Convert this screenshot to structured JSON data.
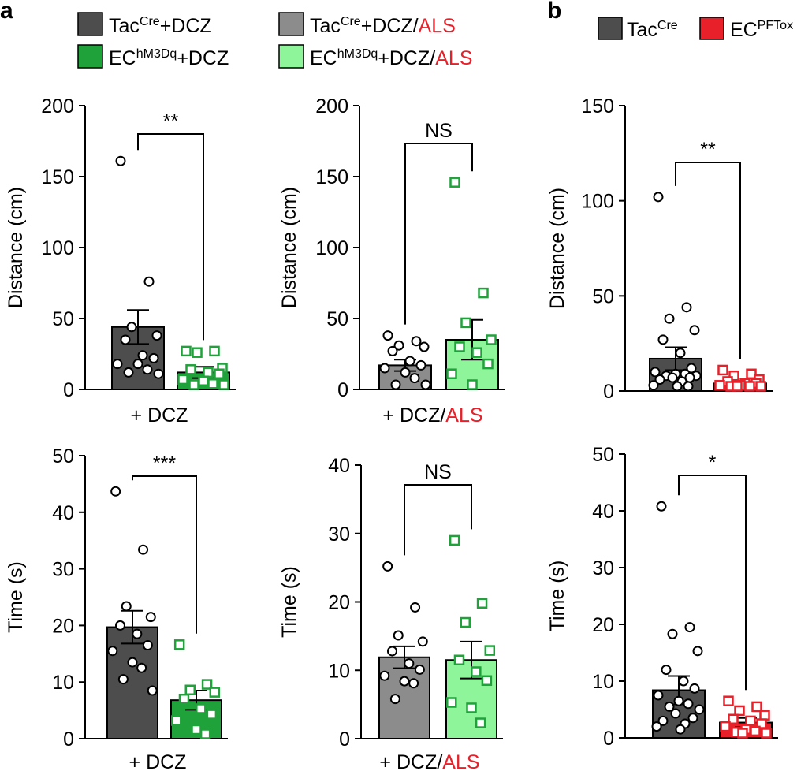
{
  "panel_labels": {
    "a": "a",
    "b": "b"
  },
  "colors": {
    "tac": "#4d4d4d",
    "ec": "#1fa23a",
    "tac_als": "#8c8c8c",
    "ec_als": "#8ef59a",
    "pftox": "#e8202a",
    "als_text": "#e8202a"
  },
  "legend_a": [
    {
      "base": "Tac",
      "sup": "Cre",
      "suffix": "+DCZ",
      "als": ""
    },
    {
      "base": "Tac",
      "sup": "Cre",
      "suffix": "+DCZ/",
      "als": "ALS"
    },
    {
      "base": "EC",
      "sup": "hM3Dq",
      "suffix": "+DCZ",
      "als": ""
    },
    {
      "base": "EC",
      "sup": "hM3Dq",
      "suffix": "+DCZ/",
      "als": "ALS"
    }
  ],
  "legend_b": [
    {
      "base": "Tac",
      "sup": "Cre"
    },
    {
      "base": "EC",
      "sup": "PFTox"
    }
  ],
  "chart_data": [
    {
      "id": "a_distance_dcz",
      "type": "bar",
      "panel": "a",
      "ylabel": "Distance (cm)",
      "xlabel": "+ DCZ",
      "xlabel_als": "",
      "ylim": [
        0,
        200
      ],
      "yticks": [
        0,
        50,
        100,
        150,
        200
      ],
      "significance": "**",
      "groups": [
        {
          "name": "TacCre+DCZ",
          "mean": 44,
          "sem": 12,
          "marker": "circle",
          "points": [
            161,
            76,
            44,
            38,
            35,
            24,
            22,
            18,
            18,
            14,
            12,
            11
          ]
        },
        {
          "name": "EChM3Dq+DCZ",
          "mean": 12,
          "sem": 4,
          "marker": "square",
          "points": [
            27,
            27,
            26,
            15,
            14,
            12,
            11,
            7,
            6,
            4,
            3,
            3
          ]
        }
      ]
    },
    {
      "id": "a_distance_dcz_als",
      "type": "bar",
      "panel": "a",
      "ylabel": "Distance (cm)",
      "xlabel": "+ DCZ/",
      "xlabel_als": "ALS",
      "ylim": [
        0,
        200
      ],
      "yticks": [
        0,
        50,
        100,
        150,
        200
      ],
      "significance": "NS",
      "groups": [
        {
          "name": "TacCre+DCZ/ALS",
          "mean": 17,
          "sem": 4,
          "marker": "circle",
          "points": [
            38,
            34,
            31,
            30,
            27,
            20,
            17,
            15,
            12,
            8,
            3,
            1
          ]
        },
        {
          "name": "EChM3Dq+DCZ/ALS",
          "mean": 35,
          "sem": 14,
          "marker": "square",
          "points": [
            146,
            68,
            47,
            35,
            30,
            26,
            18,
            11,
            2
          ]
        }
      ]
    },
    {
      "id": "b_distance",
      "type": "bar",
      "panel": "b",
      "ylabel": "Distance (cm)",
      "xlabel": "",
      "xlabel_als": "",
      "ylim": [
        0,
        150
      ],
      "yticks": [
        0,
        50,
        100,
        150
      ],
      "significance": "**",
      "groups": [
        {
          "name": "TacCre",
          "mean": 17,
          "sem": 6,
          "marker": "circle",
          "points": [
            102,
            44,
            38,
            32,
            27,
            20,
            12,
            10,
            9,
            9,
            8,
            8,
            7,
            7,
            6,
            5,
            3,
            2,
            1
          ]
        },
        {
          "name": "ECPFTox",
          "mean": 4,
          "sem": 1,
          "marker": "square",
          "points": [
            11,
            9,
            8,
            6,
            5,
            4,
            4,
            3,
            3,
            2,
            1,
            1,
            1
          ]
        }
      ]
    },
    {
      "id": "a_time_dcz",
      "type": "bar",
      "panel": "a",
      "ylabel": "Time (s)",
      "xlabel": "+ DCZ",
      "xlabel_als": "",
      "ylim": [
        0,
        50
      ],
      "yticks": [
        0,
        10,
        20,
        30,
        40,
        50
      ],
      "significance": "***",
      "groups": [
        {
          "name": "TacCre+DCZ",
          "mean": 19.7,
          "sem": 2.9,
          "marker": "circle",
          "points": [
            43.7,
            33.4,
            23.4,
            21.5,
            20.0,
            18.5,
            16.5,
            15.5,
            13.5,
            12.5,
            10.5,
            8.5
          ]
        },
        {
          "name": "EChM3Dq+DCZ",
          "mean": 6.8,
          "sem": 1.7,
          "marker": "square",
          "points": [
            16.6,
            9.6,
            8.6,
            8.2,
            7.0,
            5.3,
            4.3,
            3.2,
            1.6,
            0.1
          ]
        }
      ]
    },
    {
      "id": "a_time_dcz_als",
      "type": "bar",
      "panel": "a",
      "ylabel": "Time (s)",
      "xlabel": "+ DCZ/",
      "xlabel_als": "ALS",
      "ylim": [
        0,
        40
      ],
      "yticks": [
        0,
        10,
        20,
        30,
        40
      ],
      "significance": "NS",
      "groups": [
        {
          "name": "TacCre+DCZ/ALS",
          "mean": 11.9,
          "sem": 1.6,
          "marker": "circle",
          "points": [
            25.2,
            19.2,
            15.1,
            14.2,
            12.8,
            11.0,
            10.1,
            9.2,
            8.4,
            8.1,
            5.8
          ]
        },
        {
          "name": "EChM3Dq+DCZ/ALS",
          "mean": 11.5,
          "sem": 2.7,
          "marker": "square",
          "points": [
            29.0,
            19.8,
            17.0,
            12.9,
            11.5,
            9.8,
            8.5,
            5.3,
            4.5,
            2.3
          ]
        }
      ]
    },
    {
      "id": "b_time",
      "type": "bar",
      "panel": "b",
      "ylabel": "Time (s)",
      "xlabel": "",
      "xlabel_als": "",
      "ylim": [
        0,
        50
      ],
      "yticks": [
        0,
        10,
        20,
        30,
        40,
        50
      ],
      "significance": "*",
      "groups": [
        {
          "name": "TacCre",
          "mean": 8.4,
          "sem": 2.5,
          "marker": "circle",
          "points": [
            40.8,
            19.5,
            18.3,
            15.3,
            12.0,
            10.0,
            8.7,
            7.5,
            6.5,
            6.0,
            5.5,
            5.0,
            4.3,
            3.5,
            3.0,
            2.5,
            2.0,
            1.5
          ]
        },
        {
          "name": "ECPFTox",
          "mean": 2.7,
          "sem": 0.8,
          "marker": "square",
          "points": [
            6.5,
            5.5,
            4.8,
            4.0,
            3.3,
            3.0,
            2.5,
            2.0,
            1.5,
            1.2,
            1.0,
            0.6,
            0.2
          ]
        }
      ]
    }
  ]
}
